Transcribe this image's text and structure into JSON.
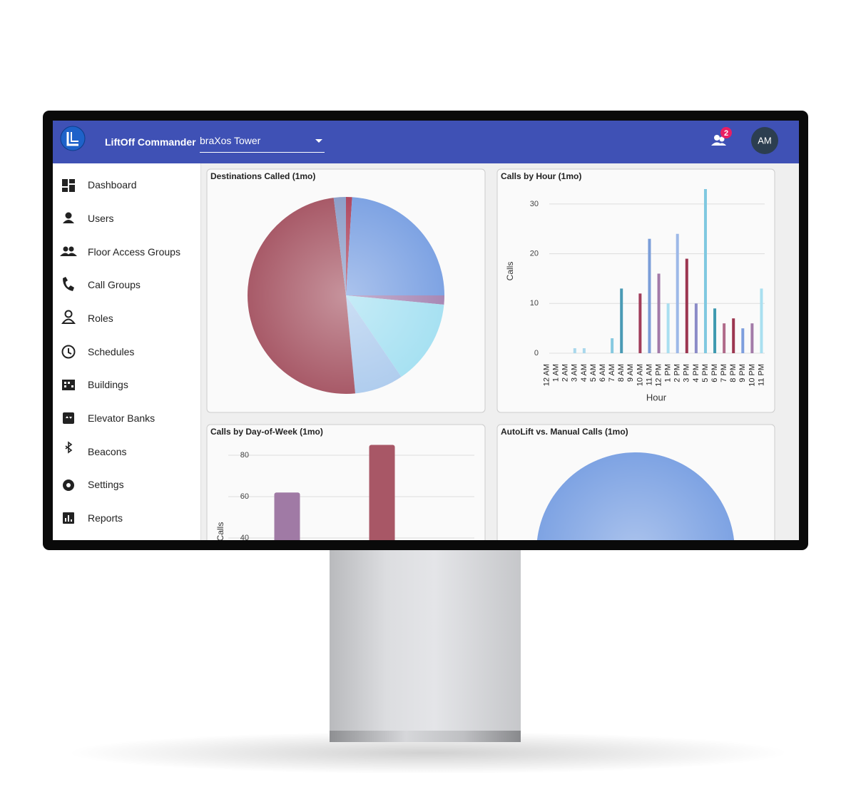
{
  "header": {
    "app_title": "LiftOff Commander",
    "building": "braXos Tower",
    "notifications": 2,
    "avatar": "AM"
  },
  "nav": [
    "Dashboard",
    "Users",
    "Floor Access Groups",
    "Call Groups",
    "Roles",
    "Schedules",
    "Buildings",
    "Elevator Banks",
    "Beacons",
    "Settings",
    "Reports"
  ],
  "chart_data": [
    {
      "type": "pie",
      "title": "Destinations Called (1mo)",
      "values": [
        1,
        24,
        1.5,
        14,
        8,
        49.5,
        2
      ],
      "colors": [
        "#b0485f",
        "#7ea3e3",
        "#a888b5",
        "#a7e1f2",
        "#b0cdee",
        "#a85a68",
        "#8d9fc9"
      ]
    },
    {
      "type": "bar",
      "title": "Calls by Hour (1mo)",
      "x_label": "Hour",
      "y_label": "Calls",
      "categories": [
        "12 AM",
        "1 AM",
        "2 AM",
        "3 AM",
        "4 AM",
        "5 AM",
        "6 AM",
        "7 AM",
        "8 AM",
        "9 AM",
        "10 AM",
        "11 AM",
        "12 PM",
        "1 PM",
        "2 PM",
        "3 PM",
        "4 PM",
        "5 PM",
        "6 PM",
        "7 PM",
        "8 PM",
        "9 PM",
        "10 PM",
        "11 PM"
      ],
      "values": [
        0,
        0,
        0,
        1,
        1,
        0,
        0,
        3,
        13,
        0,
        12,
        23,
        16,
        10,
        24,
        19,
        10,
        33,
        9,
        6,
        7,
        5,
        6,
        13
      ],
      "colors": [
        "#a9d8ec",
        "#a9d8ec",
        "#a9d8ec",
        "#a9d8ec",
        "#a9d8ec",
        "#a9d8ec",
        "#a9d8ec",
        "#86c9e0",
        "#4a9bb5",
        "#4a9bb5",
        "#a13c5a",
        "#7b9ed9",
        "#a27aa8",
        "#a9dff0",
        "#9db8e8",
        "#9c3650",
        "#8b8bc7",
        "#7fc8e0",
        "#3f9ab0",
        "#b06a8a",
        "#9c3650",
        "#7d9ede",
        "#a27aa8",
        "#a9dff0"
      ],
      "ylim": [
        0,
        33
      ],
      "yticks": [
        0,
        10,
        20,
        30
      ],
      "grid": true
    },
    {
      "type": "bar",
      "title": "Calls by Day-of-Week (1mo)",
      "y_label": "Calls",
      "categories": [
        null,
        null
      ],
      "values": [
        62,
        85
      ],
      "colors": [
        "#a07aa5",
        "#a85766"
      ],
      "ylim": [
        0,
        90
      ],
      "yticks": [
        40,
        60,
        80
      ],
      "grid": true
    },
    {
      "type": "pie",
      "title": "AutoLift vs. Manual Calls (1mo)",
      "values": [
        100
      ],
      "colors": [
        "#7ea3e3"
      ]
    }
  ]
}
